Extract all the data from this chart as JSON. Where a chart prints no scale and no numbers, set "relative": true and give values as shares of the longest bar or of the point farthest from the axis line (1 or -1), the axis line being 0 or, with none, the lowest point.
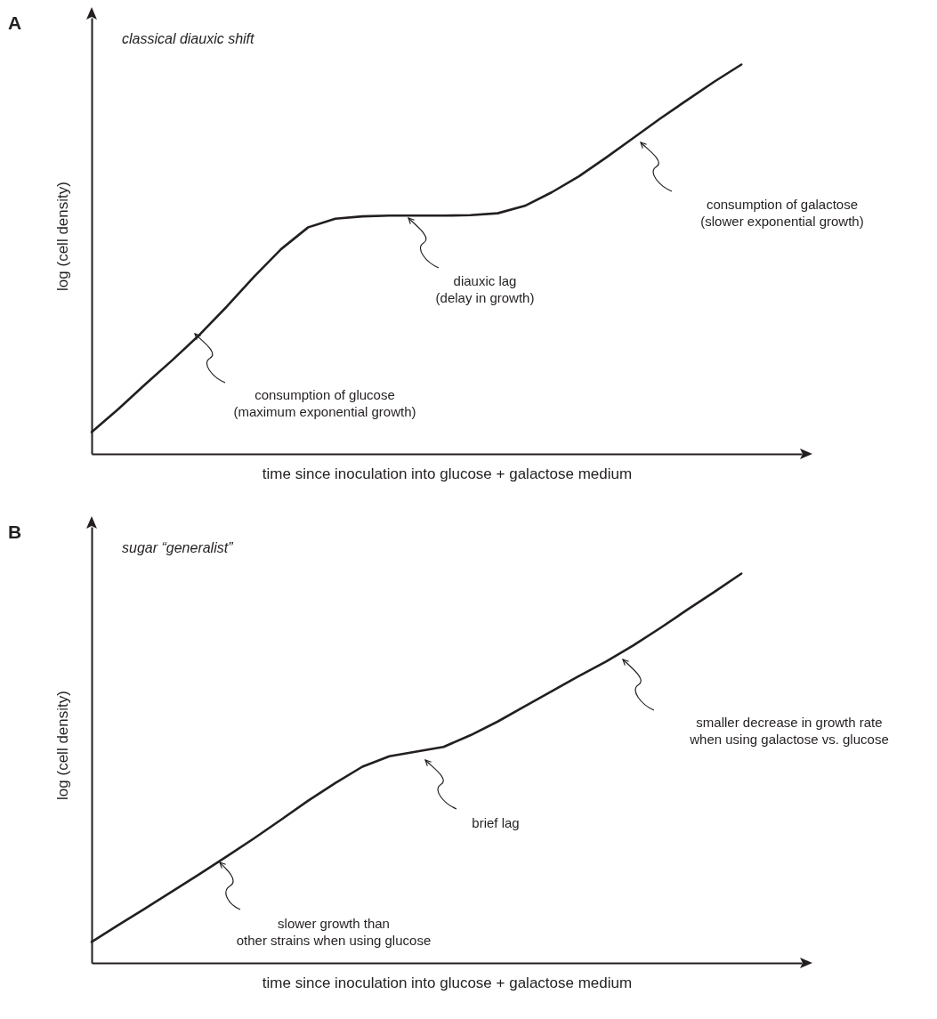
{
  "chart_data": [
    {
      "type": "line",
      "title": "classical diauxic shift",
      "xlabel": "time since inoculation into glucose + galactose medium",
      "ylabel": "log (cell density)",
      "relative": true,
      "marker": "none",
      "categories": [
        null,
        null,
        null,
        null,
        null,
        null,
        null,
        null,
        null,
        null,
        null,
        null,
        null,
        null,
        null,
        null,
        null,
        null,
        null,
        null,
        null,
        null,
        null,
        null,
        null
      ],
      "series": [
        {
          "color": "#231f20",
          "values": [
            0.056,
            0.116,
            0.18,
            0.242,
            0.307,
            0.379,
            0.455,
            0.526,
            0.582,
            0.604,
            0.61,
            0.612,
            0.612,
            0.612,
            0.613,
            0.618,
            0.637,
            0.672,
            0.713,
            0.761,
            0.811,
            0.861,
            0.909,
            0.956,
            1
          ]
        }
      ],
      "annotations": [
        "A",
        "consumption of glucose\n(maximum exponential growth)",
        "diauxic lag\n(delay in growth)",
        "consumption of galactose\n(slower exponential growth)"
      ]
    },
    {
      "type": "line",
      "title": "sugar “generalist”",
      "xlabel": "time since inoculation into glucose + galactose medium",
      "ylabel": "log (cell density)",
      "relative": true,
      "marker": "none",
      "categories": [
        null,
        null,
        null,
        null,
        null,
        null,
        null,
        null,
        null,
        null,
        null,
        null,
        null,
        null,
        null,
        null,
        null,
        null,
        null,
        null,
        null,
        null,
        null,
        null,
        null
      ],
      "series": [
        {
          "color": "#231f20",
          "values": [
            0.054,
            0.098,
            0.141,
            0.185,
            0.229,
            0.274,
            0.32,
            0.368,
            0.417,
            0.462,
            0.504,
            0.531,
            0.543,
            0.555,
            0.585,
            0.62,
            0.659,
            0.698,
            0.737,
            0.774,
            0.815,
            0.86,
            0.907,
            0.953,
            1
          ]
        }
      ],
      "annotations": [
        "B",
        "slower growth than\nother strains when using glucose",
        "brief lag",
        "smaller decrease in growth rate\nwhen using galactose vs. glucose"
      ]
    }
  ]
}
